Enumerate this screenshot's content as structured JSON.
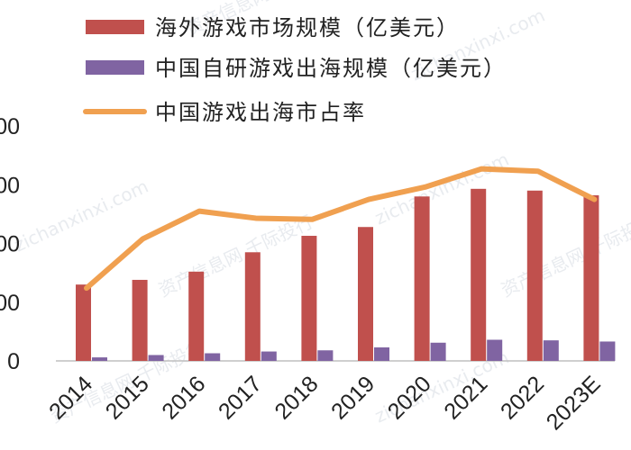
{
  "chart_data": {
    "type": "bar",
    "categories": [
      "2014",
      "2015",
      "2016",
      "2017",
      "2018",
      "2019",
      "2020",
      "2021",
      "2022",
      "2023E"
    ],
    "series": [
      {
        "name": "海外游戏市场规模（亿美元）",
        "kind": "bar",
        "color": "#c0504d",
        "values": [
          130,
          138,
          152,
          185,
          213,
          228,
          280,
          293,
          290,
          282
        ]
      },
      {
        "name": "中国自研游戏出海规模（亿美元）",
        "kind": "bar",
        "color": "#8064a2",
        "values": [
          6,
          10,
          13,
          16,
          18,
          23,
          31,
          36,
          35,
          33
        ]
      },
      {
        "name": "中国游戏出海市占率",
        "kind": "line",
        "color": "#f0a050",
        "values": [
          0.124,
          0.208,
          0.255,
          0.243,
          0.241,
          0.275,
          0.296,
          0.327,
          0.323,
          0.275
        ]
      }
    ],
    "y_ticks": [
      "0",
      "00",
      "00",
      "00",
      "00"
    ],
    "ylim": [
      0,
      400
    ],
    "grid": false,
    "legend": "top"
  },
  "watermark": {
    "text": "资产信息网 千际投行",
    "url": "zichanxinxi.com"
  }
}
